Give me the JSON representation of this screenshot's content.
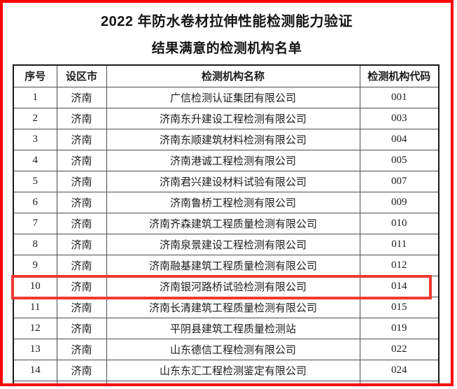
{
  "colors": {
    "frame_border": "#fd0100",
    "highlight_border": "#ee3a33",
    "grid_line": "#4d4d4d",
    "text": "#1a1a1a"
  },
  "header": {
    "title_line1": "2022 年防水卷材拉伸性能检测能力验证",
    "title_line2": "结果满意的检测机构名单"
  },
  "table": {
    "headers": [
      "序号",
      "设区市",
      "检测机构名称",
      "检测机构代码"
    ],
    "rows": [
      {
        "no": "1",
        "city": "济南",
        "name": "广信检测认证集团有限公司",
        "code": "001",
        "highlighted": false
      },
      {
        "no": "2",
        "city": "济南",
        "name": "济南东升建设工程检测有限公司",
        "code": "003",
        "highlighted": false
      },
      {
        "no": "3",
        "city": "济南",
        "name": "济南东顺建筑材料检测有限公司",
        "code": "004",
        "highlighted": false
      },
      {
        "no": "4",
        "city": "济南",
        "name": "济南港诚工程检测有限公司",
        "code": "005",
        "highlighted": false
      },
      {
        "no": "5",
        "city": "济南",
        "name": "济南君兴建设材料试验有限公司",
        "code": "007",
        "highlighted": false
      },
      {
        "no": "6",
        "city": "济南",
        "name": "济南鲁桥工程检测有限公司",
        "code": "009",
        "highlighted": false
      },
      {
        "no": "7",
        "city": "济南",
        "name": "济南齐森建筑工程质量检测有限公司",
        "code": "010",
        "highlighted": false
      },
      {
        "no": "8",
        "city": "济南",
        "name": "济南泉景建设工程检测有限公司",
        "code": "011",
        "highlighted": false
      },
      {
        "no": "9",
        "city": "济南",
        "name": "济南融基建筑工程质量检测有限公司",
        "code": "012",
        "highlighted": false
      },
      {
        "no": "10",
        "city": "济南",
        "name": "济南银河路桥试验检测有限公司",
        "code": "014",
        "highlighted": true
      },
      {
        "no": "11",
        "city": "济南",
        "name": "济南长清建筑工程质量检测有限公司",
        "code": "015",
        "highlighted": false
      },
      {
        "no": "12",
        "city": "济南",
        "name": "平阴县建筑工程质量检测站",
        "code": "019",
        "highlighted": false
      },
      {
        "no": "13",
        "city": "济南",
        "name": "山东德信工程检测有限公司",
        "code": "022",
        "highlighted": false
      },
      {
        "no": "14",
        "city": "济南",
        "name": "山东东汇工程检测鉴定有限公司",
        "code": "024",
        "highlighted": false
      }
    ],
    "highlight": {
      "row_no": "10"
    }
  }
}
